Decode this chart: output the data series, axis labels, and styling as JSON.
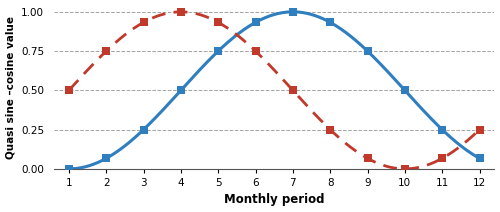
{
  "months": [
    1,
    2,
    3,
    4,
    5,
    6,
    7,
    8,
    9,
    10,
    11,
    12
  ],
  "blue_values": [
    0.0,
    0.067,
    0.25,
    0.5,
    0.75,
    0.933,
    1.0,
    0.933,
    0.75,
    0.5,
    0.25,
    0.067
  ],
  "red_values": [
    0.5,
    0.75,
    0.933,
    1.0,
    0.933,
    0.75,
    0.5,
    0.25,
    0.067,
    0.0,
    0.067,
    0.25
  ],
  "blue_color": "#2F7EC0",
  "red_color": "#C0392B",
  "xlabel": "Monthly period",
  "ylabel": "Quasi sine –cosine value",
  "yticks": [
    0,
    0.25,
    0.5,
    0.75,
    1
  ],
  "xticks": [
    1,
    2,
    3,
    4,
    5,
    6,
    7,
    8,
    9,
    10,
    11,
    12
  ],
  "grid_color": "#999999",
  "background_color": "#ffffff"
}
